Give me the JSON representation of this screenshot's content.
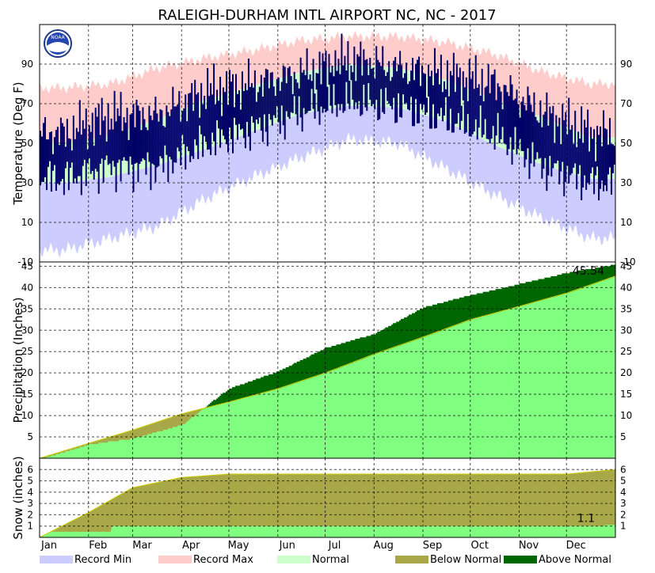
{
  "title": "RALEIGH-DURHAM INTL AIRPORT NC, NC - 2017",
  "logo_text": "NOAA",
  "colors": {
    "record_min": "#ccccff",
    "record_max": "#ffcccc",
    "normal": "#ccffcc",
    "actual": "#000066",
    "precip_normal": "#80ff80",
    "below_normal": "#a8a848",
    "above_normal": "#006600"
  },
  "months": [
    "Jan",
    "Feb",
    "Mar",
    "Apr",
    "May",
    "Jun",
    "Jul",
    "Aug",
    "Sep",
    "Oct",
    "Nov",
    "Dec"
  ],
  "legend": [
    {
      "key": "record_min",
      "label": "Record Min"
    },
    {
      "key": "record_max",
      "label": "Record Max"
    },
    {
      "key": "normal",
      "label": "Normal"
    },
    {
      "key": "below_normal",
      "label": "Below Normal"
    },
    {
      "key": "above_normal",
      "label": "Above Normal"
    }
  ],
  "chart_data": [
    {
      "type": "area",
      "name": "temperature",
      "ylabel": "Temperature (Deg F)",
      "ylim": [
        -10,
        110
      ],
      "yticks": [
        -10,
        10,
        30,
        50,
        70,
        90
      ],
      "grid": true,
      "series": {
        "record_max_by_month": [
          78,
          80,
          88,
          93,
          97,
          102,
          104,
          104,
          101,
          95,
          86,
          80
        ],
        "record_min_by_month": [
          -4,
          2,
          8,
          22,
          33,
          43,
          52,
          50,
          37,
          24,
          12,
          2
        ],
        "normal_high_by_month": [
          50,
          54,
          62,
          72,
          79,
          86,
          90,
          88,
          82,
          72,
          63,
          53
        ],
        "normal_low_by_month": [
          30,
          33,
          39,
          47,
          56,
          65,
          69,
          68,
          61,
          49,
          39,
          32
        ],
        "actual_high_by_month": [
          55,
          64,
          64,
          76,
          80,
          85,
          92,
          88,
          84,
          80,
          65,
          55
        ],
        "actual_low_by_month": [
          32,
          38,
          38,
          50,
          57,
          66,
          71,
          68,
          62,
          54,
          38,
          30
        ]
      }
    },
    {
      "type": "area",
      "name": "precipitation",
      "ylabel": "Precipitation (Inches)",
      "ylim": [
        0,
        46
      ],
      "yticks": [
        5,
        10,
        15,
        20,
        25,
        30,
        35,
        40,
        45
      ],
      "grid": true,
      "annotation": "45.54",
      "normal_cumulative_by_month_end": [
        3.5,
        6.6,
        10.4,
        13.2,
        16.3,
        20.0,
        24.4,
        28.4,
        32.5,
        35.6,
        38.7,
        42.7
      ],
      "actual_cumulative_by_month_end": [
        3.4,
        4.8,
        8.0,
        16.5,
        20.5,
        26.0,
        29.3,
        35.5,
        38.4,
        41.0,
        43.6,
        45.54
      ]
    },
    {
      "type": "area",
      "name": "snow",
      "ylabel": "Snow (inches)",
      "ylim": [
        0,
        7
      ],
      "yticks": [
        1,
        2,
        3,
        4,
        5,
        6
      ],
      "grid": true,
      "annotation": "1.1",
      "normal_cumulative_by_month_end": [
        2.2,
        4.4,
        5.3,
        5.6,
        5.6,
        5.6,
        5.6,
        5.6,
        5.6,
        5.6,
        5.6,
        6.0
      ],
      "actual_cumulative_by_month_end": [
        0.5,
        0.5,
        1.0,
        1.0,
        1.0,
        1.0,
        1.0,
        1.0,
        1.0,
        1.0,
        1.0,
        1.1
      ]
    }
  ]
}
